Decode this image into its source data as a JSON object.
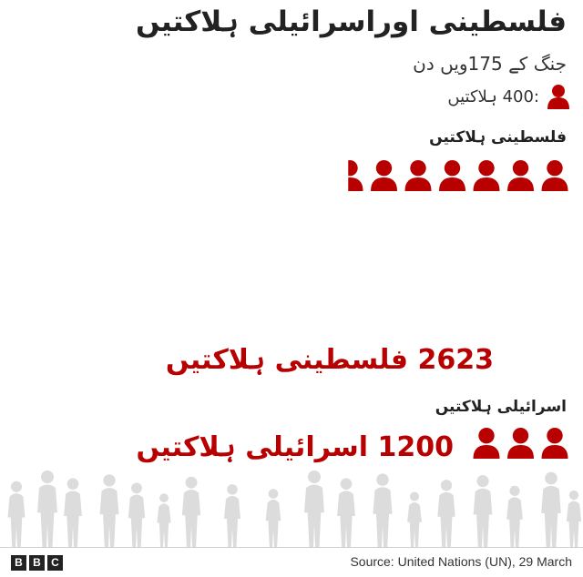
{
  "title": "فلسطینی اوراسرائیلی ہلاکتیں",
  "subtitle": "جنگ کے 175ویں دن",
  "legend": {
    "text": ":400 ہلاکتیں",
    "icon": "person-icon"
  },
  "colors": {
    "casualty": "#b80000",
    "silhouette": "#dcdcdc"
  },
  "chart_data": {
    "type": "pictogram",
    "unit_per_icon": 400,
    "series": [
      {
        "name": "فلسطینی ہلاکتیں",
        "total_label": "2623 فلسطینی ہلاکتیں",
        "value": 2623,
        "icons": 6.56
      },
      {
        "name": "اسرائیلی ہلاکتیں",
        "total_label": "1200 اسرائیلی ہلاکتیں",
        "value": 1200,
        "icons": 3
      }
    ]
  },
  "footer": {
    "logo": [
      "B",
      "B",
      "C"
    ],
    "source": "Source: United Nations (UN), 29 March"
  }
}
